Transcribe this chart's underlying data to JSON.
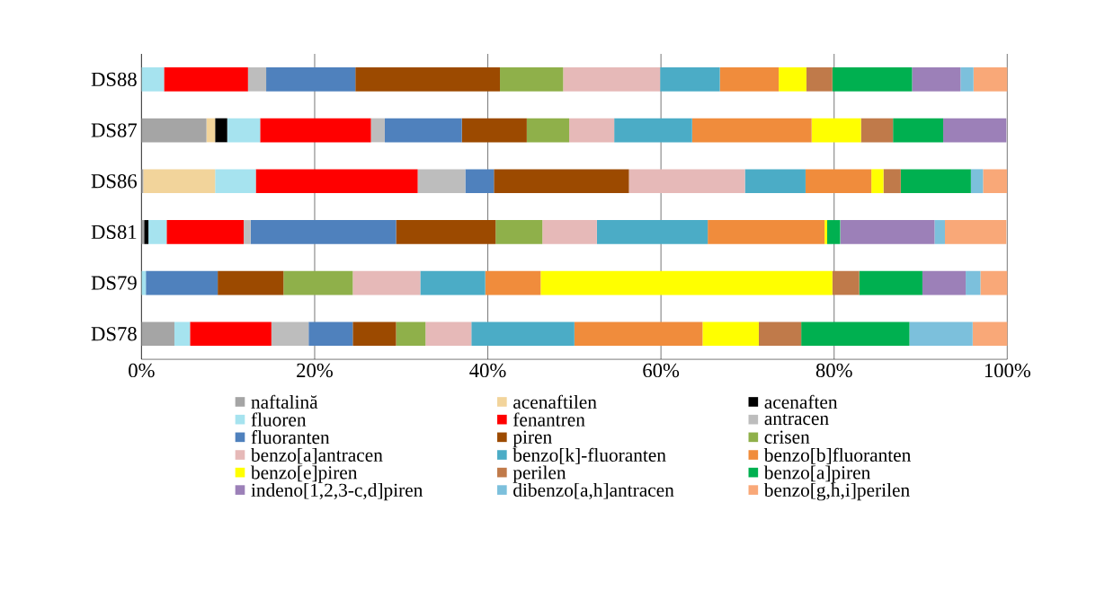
{
  "chart_data": {
    "type": "bar",
    "orientation": "horizontal",
    "stacked": true,
    "categories": [
      "DS88",
      "DS87",
      "DS86",
      "DS81",
      "DS79",
      "DS78"
    ],
    "xlim": [
      0,
      100
    ],
    "xticks": [
      {
        "value": 0,
        "label": "0%"
      },
      {
        "value": 20,
        "label": "20%"
      },
      {
        "value": 40,
        "label": "40%"
      },
      {
        "value": 60,
        "label": "60%"
      },
      {
        "value": 80,
        "label": "80%"
      },
      {
        "value": 100,
        "label": "100%"
      }
    ],
    "grid": "x",
    "legend": "bottom",
    "series": [
      {
        "name": "naftalină",
        "color": "#a5a5a5",
        "values": [
          0,
          7.5,
          0.2,
          0.3,
          0,
          3.8
        ]
      },
      {
        "name": "acenaftilen",
        "color": "#f2d49b",
        "values": [
          0,
          1.0,
          8.3,
          0,
          0,
          0
        ]
      },
      {
        "name": "acenaften",
        "color": "#000000",
        "values": [
          0,
          1.4,
          0,
          0.5,
          0,
          0
        ]
      },
      {
        "name": "fluoren",
        "color": "#a6e3ef",
        "values": [
          2.6,
          3.8,
          4.7,
          2.1,
          0.5,
          1.8
        ]
      },
      {
        "name": "fenantren",
        "color": "#ff0000",
        "values": [
          9.7,
          12.8,
          18.7,
          8.9,
          0,
          9.4
        ]
      },
      {
        "name": "antracen",
        "color": "#bdbdbd",
        "values": [
          2.1,
          1.6,
          5.5,
          0.8,
          0,
          4.3
        ]
      },
      {
        "name": "fluoranten",
        "color": "#4f81bd",
        "values": [
          10.3,
          8.9,
          3.3,
          16.8,
          8.3,
          5.1
        ]
      },
      {
        "name": "piren",
        "color": "#9c4a00",
        "values": [
          16.7,
          7.5,
          15.6,
          11.5,
          7.6,
          5.0
        ]
      },
      {
        "name": "crisen",
        "color": "#8fb04a",
        "values": [
          7.3,
          4.9,
          0,
          5.4,
          8.0,
          3.4
        ]
      },
      {
        "name": "benzo[a]antracen",
        "color": "#e6b9b8",
        "values": [
          11.2,
          5.2,
          13.4,
          6.3,
          7.8,
          5.3
        ]
      },
      {
        "name": "benzo[k]-fluoranten",
        "color": "#4bacc6",
        "values": [
          6.9,
          9.0,
          7.0,
          12.8,
          7.5,
          11.9
        ]
      },
      {
        "name": "benzo[b]fluoranten",
        "color": "#f08c3c",
        "values": [
          6.8,
          13.8,
          7.6,
          13.5,
          6.4,
          14.8
        ]
      },
      {
        "name": "benzo[e]piren",
        "color": "#ffff00",
        "values": [
          3.2,
          5.7,
          1.4,
          0.3,
          33.7,
          6.5
        ]
      },
      {
        "name": "perilen",
        "color": "#c07a4a",
        "values": [
          3.0,
          3.7,
          2.0,
          0,
          3.1,
          4.9
        ]
      },
      {
        "name": "benzo[a]piren",
        "color": "#00b050",
        "values": [
          9.2,
          5.8,
          8.1,
          1.5,
          7.3,
          12.5
        ]
      },
      {
        "name": "indeno[1,2,3-c,d]piren",
        "color": "#9c80b8",
        "values": [
          5.6,
          7.3,
          0,
          10.9,
          5.0,
          0
        ]
      },
      {
        "name": "dibenzo[a,h]antracen",
        "color": "#7cc0dc",
        "values": [
          1.5,
          0,
          1.4,
          1.2,
          1.7,
          7.3
        ]
      },
      {
        "name": "benzo[g,h,i]perilen",
        "color": "#f9a878",
        "values": [
          4.0,
          0,
          2.8,
          7.1,
          3.2,
          4.2
        ]
      }
    ]
  }
}
